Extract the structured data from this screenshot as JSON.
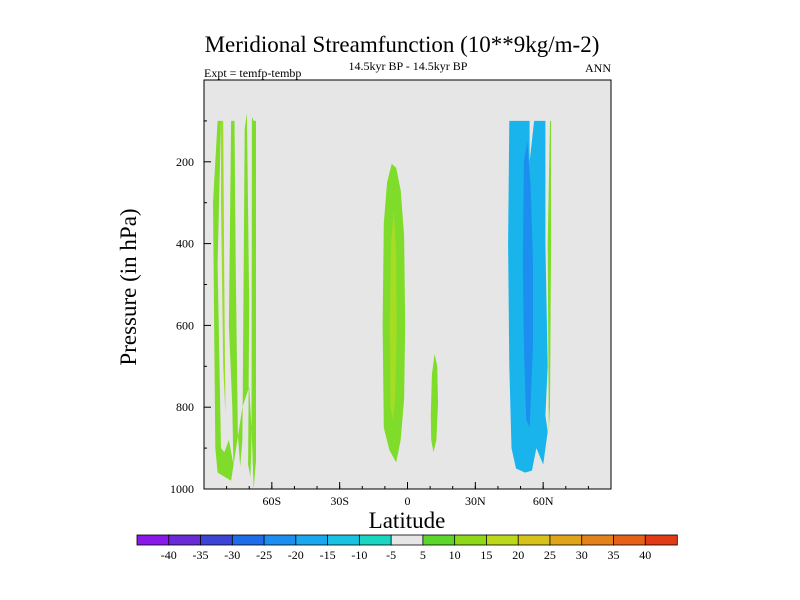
{
  "chart_data": {
    "type": "contour",
    "title": "Meridional Streamfunction (10**9kg/m-2)",
    "subtitle_left": "Expt = temfp-tembp",
    "subtitle_center": "14.5kyr BP - 14.5kyr BP",
    "subtitle_right": "ANN",
    "xlabel": "Latitude",
    "ylabel": "Pressure (in hPa)",
    "xlim": [
      -90,
      90
    ],
    "ylim": [
      1000,
      0
    ],
    "x_ticks": [
      {
        "value": -60,
        "label": "60S"
      },
      {
        "value": -30,
        "label": "30S"
      },
      {
        "value": 0,
        "label": "0"
      },
      {
        "value": 30,
        "label": "30N"
      },
      {
        "value": 60,
        "label": "60N"
      }
    ],
    "y_ticks": [
      {
        "value": 200,
        "label": "200"
      },
      {
        "value": 400,
        "label": "400"
      },
      {
        "value": 600,
        "label": "600"
      },
      {
        "value": 800,
        "label": "800"
      },
      {
        "value": 1000,
        "label": "1000"
      }
    ],
    "background_color": "#e6e6e6",
    "colorbar": {
      "labels": [
        "-40",
        "-35",
        "-30",
        "-25",
        "-20",
        "-15",
        "-10",
        "-5",
        "5",
        "10",
        "15",
        "20",
        "25",
        "30",
        "35",
        "40"
      ],
      "colors": [
        "#8a18e8",
        "#6a2ad6",
        "#3b44d4",
        "#1e6ce8",
        "#1c8ef0",
        "#19a8ee",
        "#17c2e2",
        "#1ad6c0",
        "#e6e6e6",
        "#5cd62c",
        "#8ed818",
        "#bcd81a",
        "#d8c21a",
        "#e0a41a",
        "#e4821a",
        "#e66018",
        "#e23a16"
      ]
    },
    "regions": [
      {
        "label": "SH high-latitude cell",
        "color": "#7fdc2a",
        "points": [
          [
            -84,
            100
          ],
          [
            -82.5,
            100
          ],
          [
            -84,
            450
          ],
          [
            -82.5,
            900
          ],
          [
            -81,
            910
          ],
          [
            -79,
            880
          ],
          [
            -77,
            940
          ],
          [
            -77.5,
            800
          ],
          [
            -79,
            600
          ],
          [
            -78,
            100
          ],
          [
            -76.5,
            100
          ],
          [
            -76,
            450
          ],
          [
            -75,
            870
          ],
          [
            -74,
            945
          ],
          [
            -73,
            880
          ],
          [
            -72,
            120
          ],
          [
            -71,
            80
          ],
          [
            -71,
            100
          ],
          [
            -70,
            550
          ],
          [
            -70.5,
            940
          ],
          [
            -69.5,
            970
          ],
          [
            -69,
            880
          ],
          [
            -68.8,
            90
          ],
          [
            -68,
            100
          ],
          [
            -67,
            100
          ],
          [
            -67,
            930
          ],
          [
            -68,
            1000
          ],
          [
            -69,
            850
          ],
          [
            -70,
            750
          ],
          [
            -73,
            800
          ],
          [
            -78,
            980
          ],
          [
            -84,
            960
          ],
          [
            -85,
            900
          ],
          [
            -86,
            300
          ],
          [
            -84,
            100
          ]
        ]
      },
      {
        "label": "SH inner band",
        "color": "#9edc28",
        "points": [
          [
            -82.5,
            100
          ],
          [
            -81.5,
            100
          ],
          [
            -81,
            500
          ],
          [
            -80.5,
            820
          ],
          [
            -81.5,
            700
          ],
          [
            -82.5,
            300
          ]
        ]
      },
      {
        "label": "Equatorial cell",
        "color": "#7fdc2a",
        "points": [
          [
            -10.5,
            850
          ],
          [
            -11,
            600
          ],
          [
            -10.5,
            350
          ],
          [
            -9,
            250
          ],
          [
            -7,
            205
          ],
          [
            -5,
            215
          ],
          [
            -3,
            270
          ],
          [
            -1.5,
            380
          ],
          [
            -1,
            600
          ],
          [
            -1.5,
            780
          ],
          [
            -3,
            880
          ],
          [
            -5,
            935
          ],
          [
            -8,
            905
          ]
        ]
      },
      {
        "label": "Equatorial core",
        "color": "#a6dc24",
        "points": [
          [
            -7.5,
            800
          ],
          [
            -7.8,
            600
          ],
          [
            -7.3,
            400
          ],
          [
            -6,
            320
          ],
          [
            -5,
            420
          ],
          [
            -4.8,
            620
          ],
          [
            -5.5,
            780
          ],
          [
            -6.5,
            830
          ]
        ]
      },
      {
        "label": "Small NH cell",
        "color": "#7fdc2a",
        "points": [
          [
            10.3,
            820
          ],
          [
            10.8,
            720
          ],
          [
            12,
            670
          ],
          [
            13.2,
            700
          ],
          [
            13.5,
            790
          ],
          [
            12.8,
            880
          ],
          [
            11.5,
            910
          ],
          [
            10.5,
            880
          ]
        ]
      },
      {
        "label": "NH cell",
        "color": "#19b4ec",
        "points": [
          [
            45,
            100
          ],
          [
            54,
            100
          ],
          [
            54,
            200
          ],
          [
            56,
            100
          ],
          [
            61,
            100
          ],
          [
            61,
            400
          ],
          [
            62,
            700
          ],
          [
            61,
            820
          ],
          [
            62,
            860
          ],
          [
            60,
            940
          ],
          [
            57,
            900
          ],
          [
            55,
            955
          ],
          [
            52,
            960
          ],
          [
            48,
            950
          ],
          [
            46,
            900
          ],
          [
            45,
            700
          ],
          [
            44.5,
            400
          ]
        ]
      },
      {
        "label": "NH cell core",
        "color": "#1c8ef0",
        "points": [
          [
            51.5,
            200
          ],
          [
            53,
            150
          ],
          [
            54.5,
            260
          ],
          [
            55.5,
            450
          ],
          [
            55.5,
            650
          ],
          [
            54,
            850
          ],
          [
            52.5,
            830
          ],
          [
            51.5,
            650
          ],
          [
            51,
            450
          ]
        ]
      },
      {
        "label": "NH outer edge",
        "color": "#7fdc2a",
        "points": [
          [
            63,
            100
          ],
          [
            63.5,
            100
          ],
          [
            63.5,
            400
          ],
          [
            63,
            800
          ],
          [
            62.5,
            860
          ],
          [
            62,
            400
          ]
        ]
      }
    ]
  }
}
